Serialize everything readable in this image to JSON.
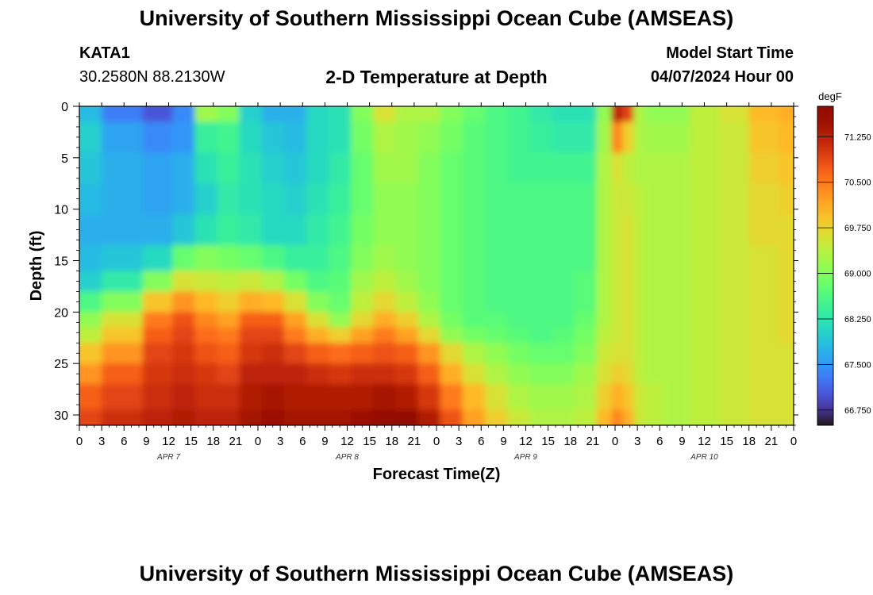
{
  "header": {
    "title": "University of Southern Mississippi Ocean Cube (AMSEAS)",
    "station": "KATA1",
    "location": "30.2580N  88.2130W",
    "plot_title": "2-D Temperature at Depth",
    "model_start_label": "Model Start Time",
    "model_start_value": "04/07/2024 Hour 00"
  },
  "footer": {
    "title": "University of Southern Mississippi Ocean Cube (AMSEAS)"
  },
  "chart_data": {
    "type": "heatmap",
    "title": "2-D Temperature at Depth",
    "xlabel": "Forecast Time(Z)",
    "ylabel": "Depth (ft)",
    "x_ticks": [
      "0",
      "3",
      "6",
      "9",
      "12",
      "15",
      "18",
      "21",
      "0",
      "3",
      "6",
      "9",
      "12",
      "15",
      "18",
      "21",
      "0",
      "3",
      "6",
      "9",
      "12",
      "15",
      "18",
      "21",
      "0",
      "3",
      "6",
      "9",
      "12",
      "15",
      "18",
      "21",
      "0"
    ],
    "day_labels": [
      "APR 7",
      "APR 8",
      "APR 9",
      "APR 10"
    ],
    "y_ticks": [
      0,
      5,
      10,
      15,
      20,
      25,
      30
    ],
    "ylim": [
      0,
      31
    ],
    "y_inverted": true,
    "x_hours_range": [
      0,
      96
    ],
    "colorbar": {
      "unit": "degF",
      "range": [
        66.5,
        71.75
      ],
      "tick_values": [
        71.25,
        70.5,
        69.75,
        69.0,
        68.25,
        67.5,
        66.75
      ],
      "tick_labels": [
        "71.250",
        "70.500",
        "69.750",
        "69.000",
        "68.250",
        "67.500",
        "66.750"
      ],
      "colormap": "turbo"
    },
    "grid": false,
    "heatmap": {
      "x_hours": [
        0,
        6,
        11,
        14,
        17,
        20,
        23,
        26,
        29,
        32,
        35,
        38,
        41,
        44,
        47,
        50,
        53,
        56,
        59,
        62,
        65,
        68,
        71,
        72,
        74,
        75,
        77,
        80,
        84,
        88,
        92,
        96
      ],
      "depth_ft": [
        0,
        3,
        6,
        9,
        12,
        15,
        17,
        19,
        21,
        22,
        24,
        26,
        28,
        31
      ],
      "values_degF": [
        [
          67.8,
          67.3,
          67.0,
          67.4,
          69.2,
          69.0,
          68.0,
          67.7,
          67.7,
          68.1,
          68.2,
          69.0,
          69.6,
          69.3,
          69.3,
          69.0,
          68.8,
          68.6,
          68.5,
          68.3,
          68.2,
          68.2,
          69.1,
          71.2,
          70.9,
          69.3,
          69.1,
          69.1,
          69.4,
          69.6,
          70.0,
          70.1
        ],
        [
          68.0,
          67.6,
          67.4,
          67.5,
          68.4,
          68.5,
          68.1,
          67.9,
          67.8,
          68.1,
          68.2,
          68.9,
          69.3,
          69.2,
          69.1,
          68.9,
          68.7,
          68.6,
          68.5,
          68.4,
          68.3,
          68.3,
          69.2,
          70.4,
          69.8,
          69.3,
          69.2,
          69.2,
          69.4,
          69.5,
          69.9,
          70.0
        ],
        [
          67.9,
          67.7,
          67.6,
          67.7,
          68.2,
          68.4,
          68.2,
          68.0,
          67.9,
          68.1,
          68.3,
          68.8,
          69.2,
          69.2,
          69.0,
          68.8,
          68.7,
          68.6,
          68.5,
          68.5,
          68.5,
          68.5,
          69.3,
          69.6,
          69.4,
          69.3,
          69.3,
          69.3,
          69.4,
          69.5,
          69.8,
          69.9
        ],
        [
          67.8,
          67.7,
          67.6,
          67.7,
          68.0,
          68.3,
          68.2,
          68.1,
          68.0,
          68.2,
          68.4,
          68.8,
          69.1,
          69.1,
          69.0,
          68.8,
          68.7,
          68.6,
          68.6,
          68.6,
          68.6,
          68.6,
          69.3,
          69.5,
          69.5,
          69.4,
          69.3,
          69.3,
          69.4,
          69.5,
          69.7,
          69.8
        ],
        [
          67.7,
          67.7,
          67.7,
          67.9,
          68.2,
          68.4,
          68.3,
          68.1,
          68.1,
          68.3,
          68.5,
          68.9,
          69.1,
          69.1,
          69.0,
          68.8,
          68.7,
          68.6,
          68.6,
          68.6,
          68.6,
          68.6,
          69.3,
          69.5,
          69.6,
          69.4,
          69.3,
          69.3,
          69.4,
          69.5,
          69.7,
          69.7
        ],
        [
          67.8,
          67.9,
          68.1,
          68.8,
          69.0,
          68.9,
          68.8,
          68.6,
          68.4,
          68.4,
          68.6,
          69.0,
          69.2,
          69.1,
          69.0,
          68.8,
          68.7,
          68.6,
          68.6,
          68.6,
          68.6,
          68.6,
          69.3,
          69.5,
          69.6,
          69.4,
          69.3,
          69.3,
          69.4,
          69.5,
          69.6,
          69.7
        ],
        [
          68.0,
          68.3,
          69.0,
          69.6,
          69.5,
          69.4,
          69.5,
          69.3,
          68.9,
          68.6,
          68.7,
          69.2,
          69.4,
          69.2,
          69.0,
          68.8,
          68.7,
          68.6,
          68.6,
          68.6,
          68.6,
          68.7,
          69.3,
          69.5,
          69.6,
          69.4,
          69.3,
          69.3,
          69.4,
          69.5,
          69.6,
          69.7
        ],
        [
          68.6,
          69.0,
          69.9,
          70.3,
          70.0,
          69.8,
          70.1,
          70.0,
          69.6,
          69.0,
          68.8,
          69.4,
          69.7,
          69.4,
          69.1,
          68.8,
          68.7,
          68.6,
          68.6,
          68.6,
          68.6,
          68.7,
          69.3,
          69.5,
          69.6,
          69.4,
          69.3,
          69.3,
          69.4,
          69.5,
          69.6,
          69.7
        ],
        [
          69.1,
          69.6,
          70.5,
          70.8,
          70.4,
          70.2,
          70.7,
          70.7,
          70.2,
          69.6,
          69.1,
          69.7,
          70.1,
          69.8,
          69.3,
          68.9,
          68.7,
          68.7,
          68.6,
          68.6,
          68.6,
          68.8,
          69.3,
          69.5,
          69.6,
          69.4,
          69.3,
          69.3,
          69.4,
          69.5,
          69.6,
          69.7
        ],
        [
          69.4,
          69.9,
          70.7,
          70.9,
          70.6,
          70.5,
          70.9,
          70.9,
          70.5,
          70.1,
          69.8,
          70.2,
          70.5,
          70.2,
          69.7,
          69.1,
          68.9,
          68.8,
          68.7,
          68.6,
          68.7,
          68.9,
          69.4,
          69.5,
          69.6,
          69.4,
          69.3,
          69.3,
          69.4,
          69.5,
          69.6,
          69.7
        ],
        [
          69.9,
          70.3,
          70.9,
          71.0,
          70.8,
          70.7,
          71.0,
          71.1,
          70.9,
          70.7,
          70.6,
          70.7,
          70.8,
          70.7,
          70.3,
          69.7,
          69.3,
          69.1,
          68.9,
          68.8,
          68.8,
          69.0,
          69.5,
          69.6,
          69.6,
          69.4,
          69.3,
          69.3,
          69.4,
          69.5,
          69.6,
          69.6
        ],
        [
          70.3,
          70.7,
          71.0,
          71.1,
          71.0,
          70.9,
          71.2,
          71.2,
          71.2,
          71.1,
          71.0,
          71.1,
          71.1,
          71.0,
          70.7,
          70.1,
          69.6,
          69.3,
          69.1,
          69.0,
          69.0,
          69.2,
          69.6,
          69.8,
          69.7,
          69.4,
          69.3,
          69.3,
          69.4,
          69.5,
          69.6,
          69.6
        ],
        [
          70.7,
          70.9,
          71.1,
          71.2,
          71.1,
          71.1,
          71.3,
          71.4,
          71.3,
          71.3,
          71.3,
          71.3,
          71.4,
          71.3,
          71.0,
          70.5,
          70.0,
          69.6,
          69.3,
          69.2,
          69.2,
          69.3,
          69.8,
          70.1,
          69.9,
          69.5,
          69.4,
          69.3,
          69.4,
          69.5,
          69.6,
          69.6
        ],
        [
          70.9,
          71.1,
          71.2,
          71.3,
          71.2,
          71.2,
          71.4,
          71.5,
          71.4,
          71.4,
          71.4,
          71.5,
          71.6,
          71.7,
          71.3,
          70.8,
          70.2,
          69.8,
          69.5,
          69.3,
          69.3,
          69.4,
          70.0,
          70.4,
          70.1,
          69.5,
          69.4,
          69.3,
          69.4,
          69.5,
          69.6,
          69.6
        ]
      ]
    }
  }
}
